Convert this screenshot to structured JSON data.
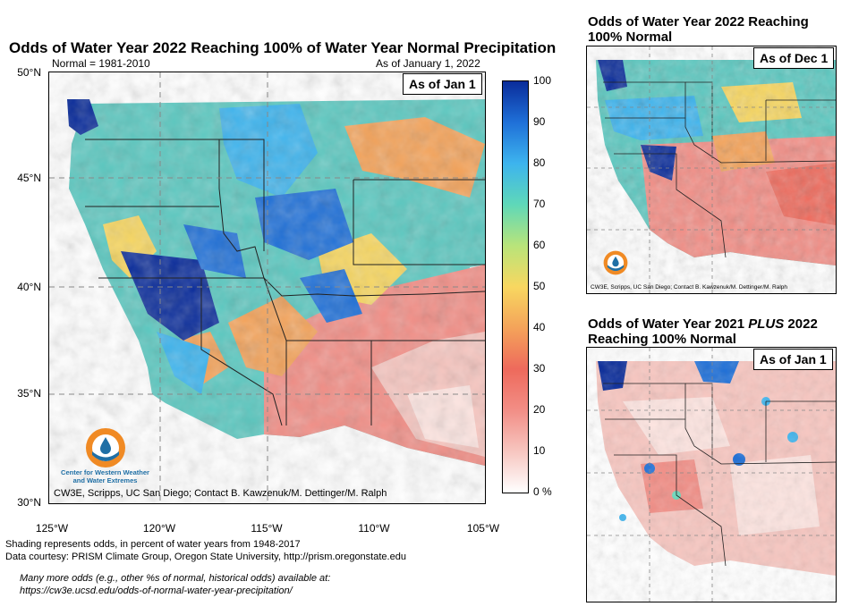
{
  "main": {
    "title": "Odds of Water Year 2022 Reaching 100% of Water Year Normal Precipitation",
    "normal_note": "Normal = 1981-2010",
    "as_of_note": "As of January 1, 2022",
    "badge": "As of Jan 1",
    "lat_labels": [
      "50°N",
      "45°N",
      "40°N",
      "35°N",
      "30°N"
    ],
    "lon_labels": [
      "125°W",
      "120°W",
      "115°W",
      "110°W",
      "105°W"
    ],
    "credit": "CW3E, Scripps, UC San Diego; Contact B. Kawzenuk/M. Dettinger/M. Ralph",
    "logo_text": [
      "Center for Western Weather",
      "and Water Extremes"
    ]
  },
  "colorbar": {
    "ticks": [
      "100",
      "90",
      "80",
      "70",
      "60",
      "50",
      "40",
      "30",
      "20",
      "10",
      "0 %"
    ],
    "colors": [
      "#ffffff",
      "#f7c6c0",
      "#f28e86",
      "#ee6a5c",
      "#f4a35a",
      "#f8d760",
      "#b9e47a",
      "#5fd8b8",
      "#3db4ee",
      "#1f70d8",
      "#0a2c9a"
    ]
  },
  "footer": {
    "line1": "Shading represents odds, in percent of water years from 1948-2017",
    "line2": "Data courtesy: PRISM Climate Group, Oregon State University, http://prism.oregonstate.edu",
    "link_line1": "Many more odds (e.g., other %s of normal, historical odds) available at:",
    "link_line2": "https://cw3e.ucsd.edu/odds-of-normal-water-year-precipitation/"
  },
  "panel_top": {
    "title_line1": "Odds of Water Year 2022 Reaching",
    "title_line2": "100% Normal",
    "badge": "As of Dec 1",
    "credit": "CW3E, Scripps, UC San Diego; Contact B. Kawzenuk/M. Dettinger/M. Ralph"
  },
  "panel_bottom": {
    "title_part1": "Odds of Water Year 2021 ",
    "title_emphasis": "PLUS",
    "title_part2": " 2022",
    "title_line2": "Reaching 100% Normal",
    "badge": "As of Jan 1"
  }
}
